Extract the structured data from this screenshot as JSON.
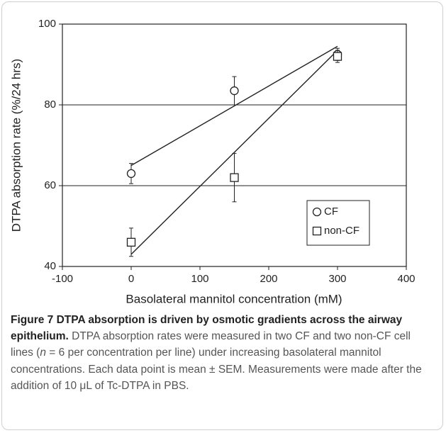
{
  "chart_data": {
    "type": "scatter",
    "xlabel": "Basolateral mannitol concentration (mM)",
    "ylabel": "DTPA absorption rate (%/24 hrs)",
    "xlim": [
      -100,
      400
    ],
    "xticks": [
      -100,
      0,
      100,
      200,
      300,
      400
    ],
    "ylim": [
      40,
      100
    ],
    "yticks": [
      40,
      60,
      80,
      100
    ],
    "grid_y": [
      60,
      80
    ],
    "legend": "lower right",
    "series": [
      {
        "name": "CF",
        "marker": "circle",
        "color": "#222222",
        "x": [
          0,
          150,
          300
        ],
        "values": [
          63,
          83.5,
          92.5
        ],
        "errors": [
          2.5,
          3.5,
          1.5
        ]
      },
      {
        "name": "non-CF",
        "marker": "square",
        "color": "#222222",
        "x": [
          0,
          150,
          300
        ],
        "values": [
          46,
          62,
          92
        ],
        "errors": [
          3.5,
          6,
          1.5
        ]
      }
    ],
    "trendlines": [
      {
        "x": [
          0,
          300
        ],
        "values": [
          65,
          94.5
        ]
      },
      {
        "x": [
          0,
          300
        ],
        "values": [
          43,
          93.5
        ]
      }
    ]
  },
  "caption": {
    "title": "Figure 7 DTPA absorption is driven by osmotic gradients across the airway epithelium.",
    "text": [
      "DTPA absorption rates were measured in two CF and two non-CF cell lines (",
      "n",
      " = 6 per concentration per line) under increasing basolateral mannitol concentrations. Each data point is mean ± SEM. Measurements were made after the addition of 10 μL of Tc-DTPA in PBS."
    ]
  }
}
